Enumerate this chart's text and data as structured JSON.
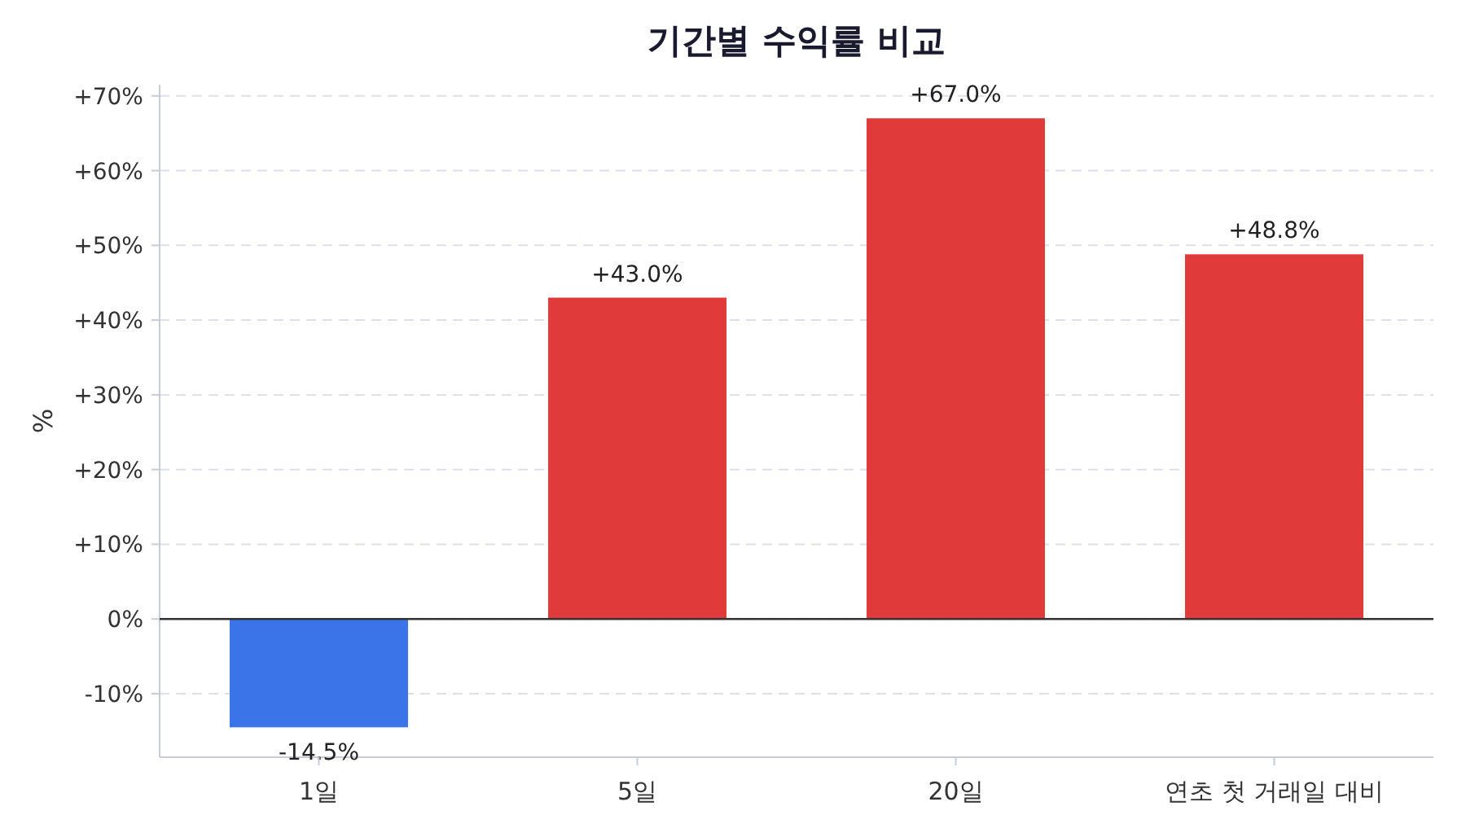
{
  "chart_data": {
    "type": "bar",
    "title": "기간별 수익률 비교",
    "ylabel": "%",
    "categories": [
      "1일",
      "5일",
      "20일",
      "연초 첫 거래일 대비"
    ],
    "values": [
      -14.5,
      43.0,
      67.0,
      48.8
    ],
    "colors": [
      "#3b73e8",
      "#e03a3a",
      "#e03a3a",
      "#e03a3a"
    ],
    "value_labels": [
      "-14.5%",
      "+43.0%",
      "+67.0%",
      "+48.8%"
    ],
    "ylim": [
      -18.5,
      71.5
    ],
    "yticks": [
      {
        "value": -10,
        "label": "-10%"
      },
      {
        "value": 0,
        "label": "0%"
      },
      {
        "value": 10,
        "label": "+10%"
      },
      {
        "value": 20,
        "label": "+20%"
      },
      {
        "value": 30,
        "label": "+30%"
      },
      {
        "value": 40,
        "label": "+40%"
      },
      {
        "value": 50,
        "label": "+50%"
      },
      {
        "value": 60,
        "label": "+60%"
      },
      {
        "value": 70,
        "label": "+70%"
      }
    ],
    "grid": "y",
    "ref_lines": [
      {
        "axis": "y",
        "value": 0,
        "color": "#333333"
      }
    ]
  }
}
